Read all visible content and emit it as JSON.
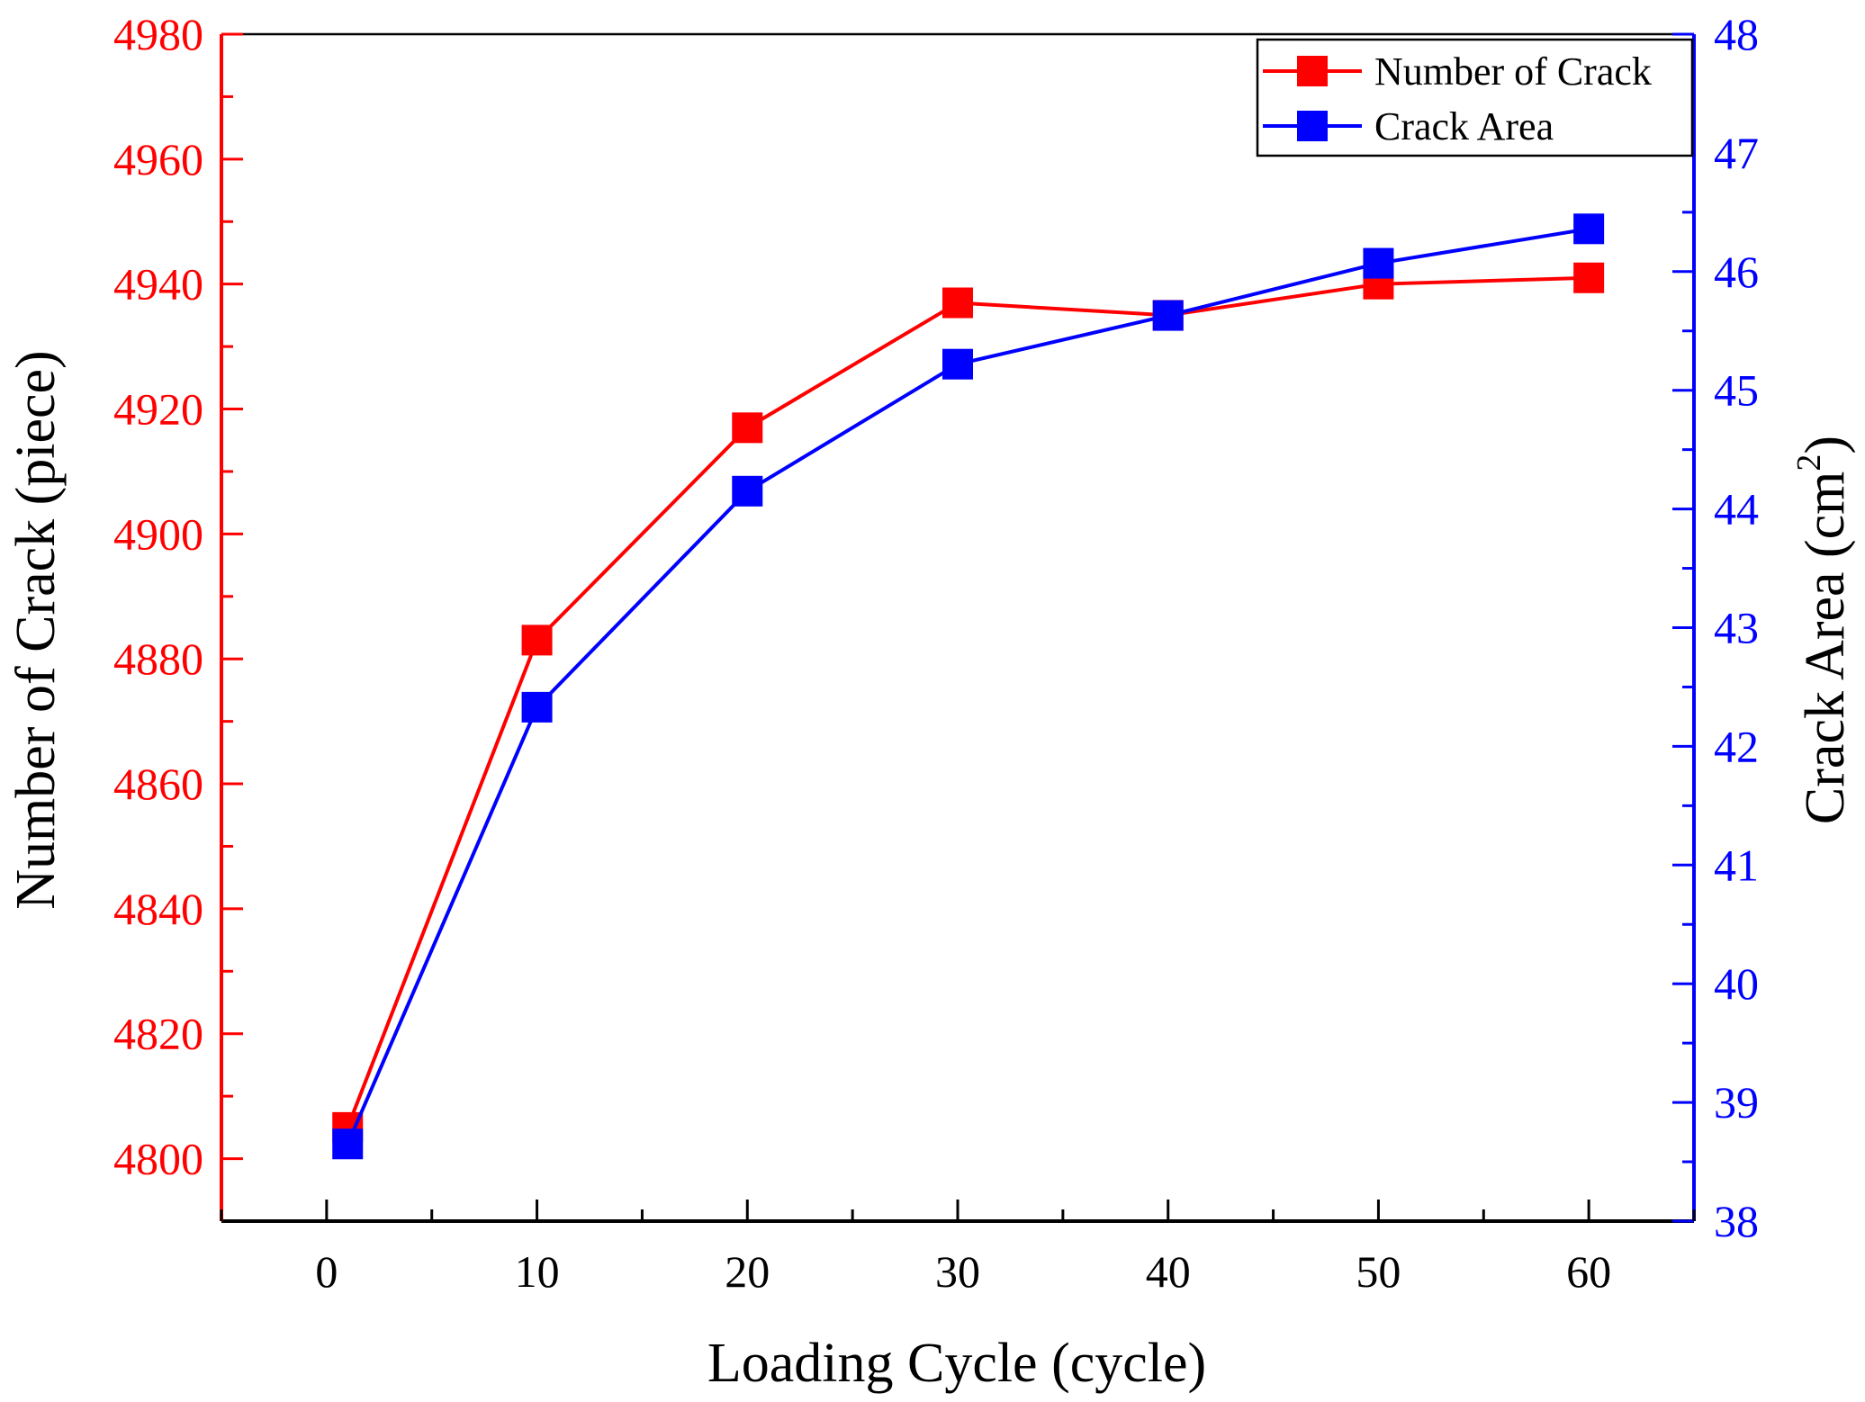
{
  "chart_data": {
    "type": "line",
    "x": [
      1,
      10,
      20,
      30,
      40,
      50,
      60
    ],
    "xlabel": "Loading Cycle (cycle)",
    "xlim": [
      -5,
      65
    ],
    "xticks": [
      "0",
      "10",
      "20",
      "30",
      "40",
      "50",
      "60"
    ],
    "left_axis": {
      "label": "Number of Crack (piece)",
      "ylim": [
        4790,
        4980
      ],
      "ticks": [
        "4800",
        "4820",
        "4840",
        "4860",
        "4880",
        "4900",
        "4920",
        "4940",
        "4960",
        "4980"
      ],
      "color": "#ff0000"
    },
    "right_axis": {
      "label": "Crack Area (cm",
      "label_superscript": "2",
      "label_suffix": ")",
      "ylim": [
        38,
        48
      ],
      "ticks": [
        "38",
        "39",
        "40",
        "41",
        "42",
        "43",
        "44",
        "45",
        "46",
        "47",
        "48"
      ],
      "color": "#0000ff"
    },
    "series": [
      {
        "name": "Number of Crack",
        "axis": "left",
        "color": "#ff0000",
        "values": [
          4805,
          4883,
          4917,
          4937,
          4935,
          4940,
          4941
        ]
      },
      {
        "name": "Crack Area",
        "axis": "right",
        "color": "#0000ff",
        "values": [
          38.65,
          42.33,
          44.15,
          45.22,
          45.63,
          46.07,
          46.36
        ]
      }
    ],
    "legend_position": "top-right",
    "grid": false
  }
}
